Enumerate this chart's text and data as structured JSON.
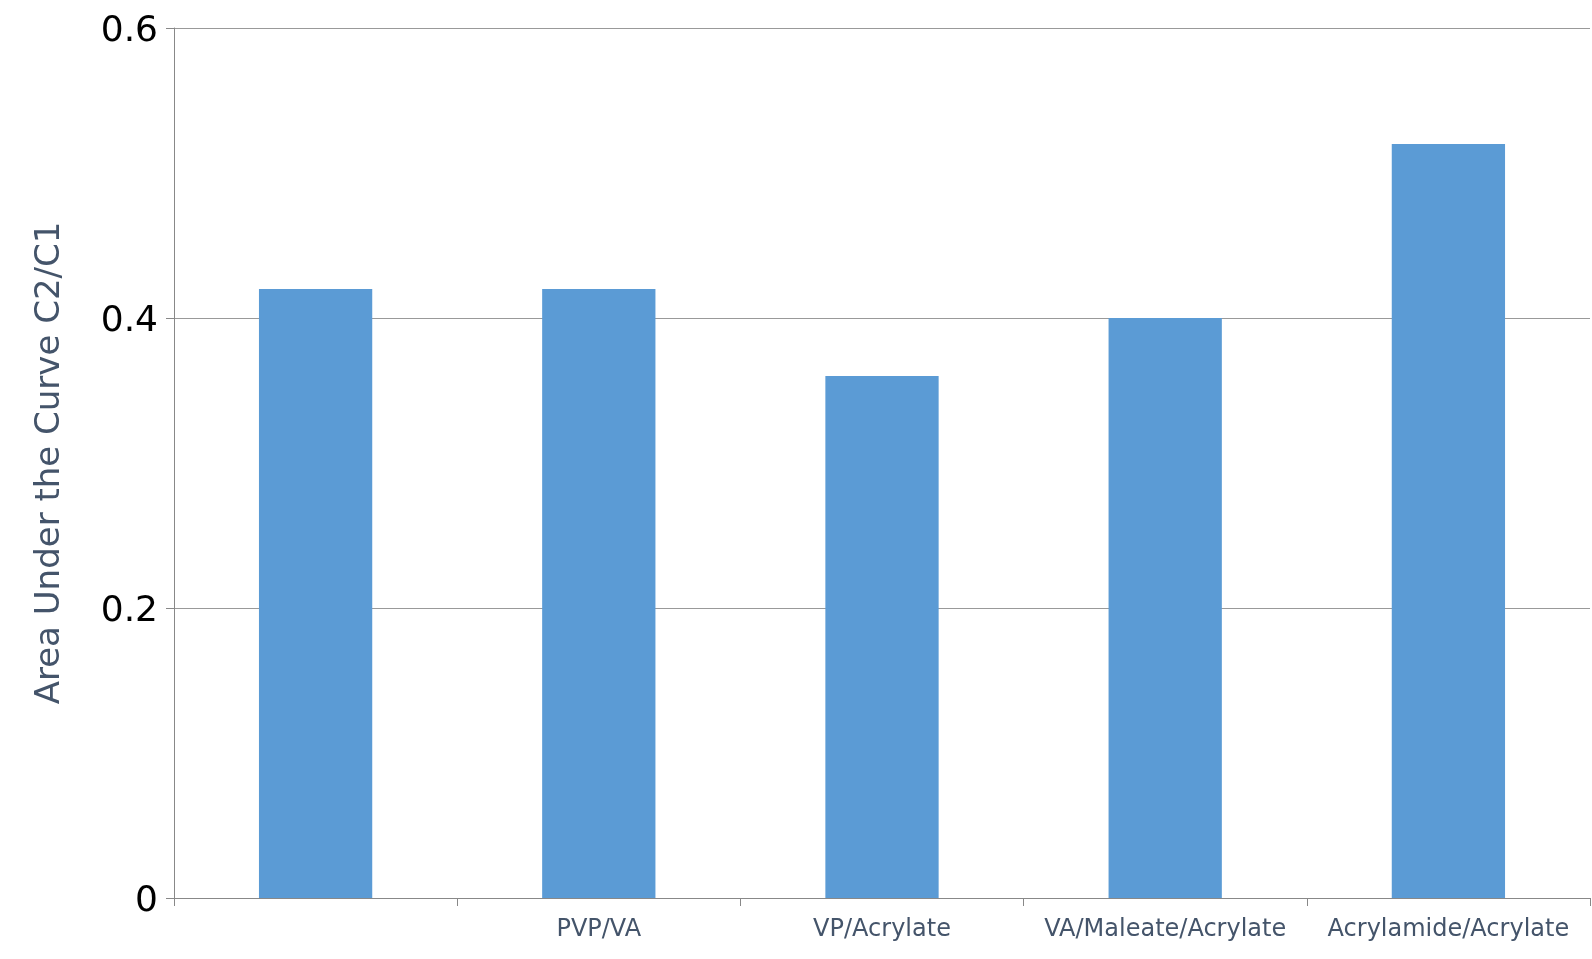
{
  "chart_data": {
    "type": "bar",
    "ylabel": "Area Under the Curve C2/C1",
    "categories": [
      null,
      "PVP/VA",
      "VP/Acrylate",
      "VA/Maleate/Acrylate",
      "Acrylamide/Acrylate"
    ],
    "values": [
      0.42,
      0.42,
      0.36,
      0.4,
      0.52
    ],
    "color": "#5b9bd5",
    "ylim": [
      0,
      0.6
    ],
    "yticks": [
      0,
      0.2,
      0.4,
      0.6
    ],
    "grid": "y"
  }
}
